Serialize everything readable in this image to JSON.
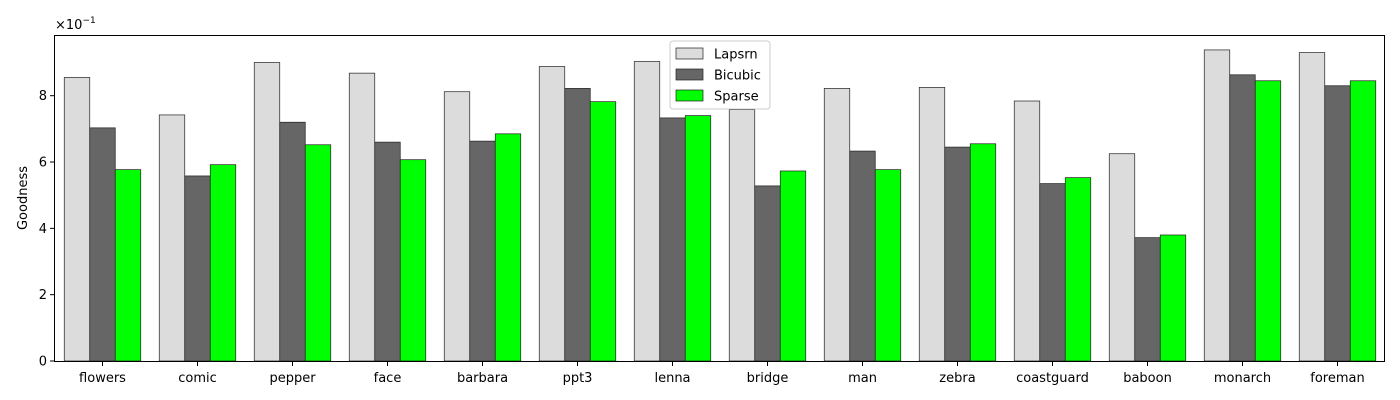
{
  "chart_data": {
    "type": "bar",
    "title": "",
    "xlabel": "",
    "ylabel": "Goodness",
    "y_multiplier_label": "×10",
    "y_multiplier_exponent": "−1",
    "ylim": [
      0,
      9.8
    ],
    "yticks": [
      0,
      2,
      4,
      6,
      8
    ],
    "ytick_labels": [
      "0",
      "2",
      "4",
      "6",
      "8"
    ],
    "grid": false,
    "legend_position": "top-center",
    "categories": [
      "flowers",
      "comic",
      "pepper",
      "face",
      "barbara",
      "ppt3",
      "lenna",
      "bridge",
      "man",
      "zebra",
      "coastguard",
      "baboon",
      "monarch",
      "foreman"
    ],
    "series": [
      {
        "name": "Lapsrn",
        "color": "#dcdcdc",
        "values": [
          8.55,
          7.42,
          9.0,
          8.68,
          8.12,
          8.88,
          9.03,
          7.58,
          8.22,
          8.25,
          7.84,
          6.25,
          9.38,
          9.3
        ]
      },
      {
        "name": "Bicubic",
        "color": "#666666",
        "values": [
          7.03,
          5.58,
          7.2,
          6.6,
          6.63,
          8.22,
          7.33,
          5.28,
          6.33,
          6.45,
          5.35,
          3.72,
          8.63,
          8.3
        ]
      },
      {
        "name": "Sparse",
        "color": "#00ff00",
        "values": [
          5.77,
          5.92,
          6.52,
          6.07,
          6.85,
          7.82,
          7.4,
          5.73,
          5.77,
          6.55,
          5.53,
          3.8,
          8.45,
          8.45
        ]
      }
    ]
  }
}
